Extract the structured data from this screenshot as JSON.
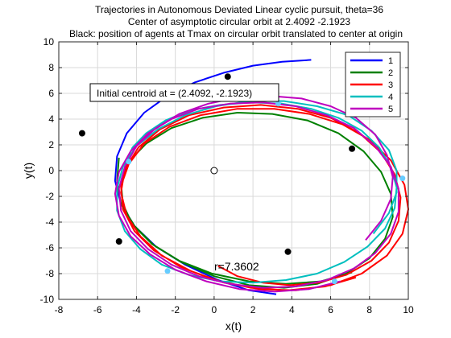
{
  "chart_data": {
    "type": "line",
    "title_lines": [
      "Trajectories in Autonomous Deviated Linear cyclic pursuit, theta=36",
      "Center of asymptotic circular orbit at  2.4092     -2.1923",
      "Black: position of agents at Tmax on circular orbit translated to center at origin"
    ],
    "xlabel": "x(t)",
    "ylabel": "y(t)",
    "xlim": [
      -8,
      10
    ],
    "ylim": [
      -10,
      10
    ],
    "xticks": [
      -8,
      -6,
      -4,
      -2,
      0,
      2,
      4,
      6,
      8,
      10
    ],
    "yticks": [
      -10,
      -8,
      -6,
      -4,
      -2,
      0,
      2,
      4,
      6,
      8,
      10
    ],
    "grid": true,
    "legend_position": "top-right",
    "annotation_box": "Initial centroid at = (2.4092, -2.1923)",
    "radius_label": "r=7.3602",
    "center": [
      2.4092,
      -2.1923
    ],
    "radius": 7.3602,
    "series": [
      {
        "name": "1",
        "color": "#0000ff",
        "points": [
          [
            5.0,
            8.6
          ],
          [
            3.5,
            8.45
          ],
          [
            2.0,
            8.15
          ],
          [
            0.5,
            7.6
          ],
          [
            -1.0,
            6.85
          ],
          [
            -2.4,
            5.8
          ],
          [
            -3.6,
            4.5
          ],
          [
            -4.5,
            2.9
          ],
          [
            -5.0,
            1.1
          ],
          [
            -5.1,
            -0.8
          ],
          [
            -4.8,
            -2.6
          ],
          [
            -4.1,
            -4.3
          ],
          [
            -3.0,
            -5.9
          ],
          [
            -1.5,
            -7.3
          ],
          [
            0.2,
            -8.5
          ],
          [
            1.8,
            -9.3
          ],
          [
            3.2,
            -9.6
          ]
        ]
      },
      {
        "name": "2",
        "color": "#008000",
        "points": [
          [
            -4.9,
            1.0
          ],
          [
            -5.0,
            -0.8
          ],
          [
            -4.8,
            -2.6
          ],
          [
            -4.1,
            -4.3
          ],
          [
            -3.1,
            -5.8
          ],
          [
            -1.7,
            -7.1
          ],
          [
            0.0,
            -8.2
          ],
          [
            1.8,
            -8.9
          ],
          [
            3.6,
            -9.1
          ],
          [
            5.3,
            -8.8
          ],
          [
            6.8,
            -8.0
          ],
          [
            8.0,
            -6.8
          ],
          [
            8.8,
            -5.3
          ],
          [
            9.2,
            -3.6
          ],
          [
            9.1,
            -1.8
          ],
          [
            8.6,
            -0.1
          ],
          [
            7.7,
            1.5
          ],
          [
            6.4,
            2.9
          ],
          [
            4.8,
            3.9
          ],
          [
            3.0,
            4.4
          ],
          [
            1.2,
            4.5
          ],
          [
            -0.6,
            4.1
          ],
          [
            -2.2,
            3.3
          ],
          [
            -3.5,
            2.1
          ],
          [
            -4.4,
            0.7
          ],
          [
            -4.8,
            -0.9
          ],
          [
            -4.7,
            -2.6
          ],
          [
            -4.2,
            -4.2
          ],
          [
            -3.2,
            -5.7
          ],
          [
            -1.8,
            -7.0
          ],
          [
            -0.1,
            -8.0
          ],
          [
            1.8,
            -8.6
          ],
          [
            3.7,
            -8.8
          ],
          [
            5.5,
            -8.6
          ],
          [
            7.1,
            -7.9
          ]
        ]
      },
      {
        "name": "3",
        "color": "#ff0000",
        "points": [
          [
            0.2,
            -7.4
          ],
          [
            1.2,
            -8.2
          ],
          [
            2.5,
            -8.7
          ],
          [
            3.9,
            -8.9
          ],
          [
            5.4,
            -8.7
          ],
          [
            6.8,
            -8.1
          ],
          [
            8.1,
            -7.0
          ],
          [
            9.0,
            -5.6
          ],
          [
            9.5,
            -3.9
          ],
          [
            9.6,
            -2.1
          ],
          [
            9.3,
            -0.3
          ],
          [
            8.6,
            1.4
          ],
          [
            7.5,
            2.9
          ],
          [
            6.0,
            4.1
          ],
          [
            4.3,
            4.8
          ],
          [
            2.4,
            5.1
          ],
          [
            0.5,
            4.9
          ],
          [
            -1.3,
            4.3
          ],
          [
            -2.8,
            3.2
          ],
          [
            -3.9,
            1.8
          ],
          [
            -4.6,
            0.1
          ],
          [
            -4.8,
            -1.7
          ],
          [
            -4.5,
            -3.5
          ],
          [
            -3.8,
            -5.1
          ],
          [
            -2.7,
            -6.6
          ],
          [
            -1.2,
            -7.8
          ],
          [
            0.5,
            -8.7
          ],
          [
            2.3,
            -9.2
          ],
          [
            4.2,
            -9.3
          ],
          [
            6.0,
            -8.9
          ],
          [
            7.6,
            -8.0
          ],
          [
            8.9,
            -6.6
          ],
          [
            9.7,
            -4.9
          ],
          [
            10.0,
            -3.0
          ],
          [
            9.8,
            -1.1
          ],
          [
            9.1,
            0.8
          ],
          [
            8.0,
            2.4
          ],
          [
            6.6,
            3.6
          ],
          [
            4.9,
            4.4
          ],
          [
            3.1,
            4.8
          ],
          [
            1.2,
            4.8
          ],
          [
            -0.7,
            4.3
          ],
          [
            -2.3,
            3.4
          ],
          [
            -3.6,
            2.1
          ],
          [
            -4.4,
            0.5
          ],
          [
            -4.8,
            -1.2
          ],
          [
            -4.7,
            -3.0
          ],
          [
            -4.1,
            -4.7
          ],
          [
            -3.1,
            -6.2
          ],
          [
            -1.7,
            -7.5
          ],
          [
            0.0,
            -8.5
          ],
          [
            1.9,
            -9.1
          ],
          [
            3.8,
            -9.3
          ],
          [
            5.7,
            -9.0
          ],
          [
            7.3,
            -8.3
          ]
        ]
      },
      {
        "name": "4",
        "color": "#00bfbf",
        "points": [
          [
            -4.5,
            0.8
          ],
          [
            -4.2,
            1.8
          ],
          [
            -3.5,
            2.9
          ],
          [
            -2.5,
            3.9
          ],
          [
            -1.2,
            4.7
          ],
          [
            0.3,
            5.1
          ],
          [
            1.9,
            5.3
          ],
          [
            3.5,
            5.2
          ],
          [
            5.0,
            4.8
          ],
          [
            6.4,
            4.1
          ],
          [
            7.6,
            3.1
          ],
          [
            8.5,
            1.8
          ],
          [
            9.1,
            0.3
          ],
          [
            9.4,
            -1.3
          ],
          [
            9.3,
            -2.9
          ],
          [
            8.8,
            -4.5
          ],
          [
            7.9,
            -5.9
          ],
          [
            6.7,
            -7.1
          ],
          [
            5.3,
            -8.0
          ],
          [
            3.7,
            -8.5
          ],
          [
            2.0,
            -8.7
          ],
          [
            0.3,
            -8.6
          ],
          [
            -1.3,
            -8.1
          ],
          [
            -2.7,
            -7.3
          ],
          [
            -3.8,
            -6.1
          ],
          [
            -4.6,
            -4.7
          ],
          [
            -5.0,
            -3.1
          ],
          [
            -5.0,
            -1.4
          ],
          [
            -4.7,
            0.3
          ],
          [
            -4.0,
            1.9
          ],
          [
            -2.9,
            3.2
          ],
          [
            -1.5,
            4.3
          ],
          [
            0.1,
            5.0
          ],
          [
            1.8,
            5.4
          ],
          [
            3.6,
            5.4
          ],
          [
            5.3,
            5.0
          ],
          [
            6.9,
            4.3
          ],
          [
            8.1,
            3.1
          ],
          [
            9.0,
            1.6
          ],
          [
            9.4,
            0.0
          ],
          [
            9.4,
            -1.7
          ],
          [
            9.0,
            -3.3
          ],
          [
            8.2,
            -4.9
          ]
        ]
      },
      {
        "name": "5",
        "color": "#bf00bf",
        "points": [
          [
            7.8,
            -5.4
          ],
          [
            8.6,
            -3.9
          ],
          [
            9.1,
            -2.2
          ],
          [
            9.2,
            -0.5
          ],
          [
            8.9,
            1.2
          ],
          [
            8.3,
            2.8
          ],
          [
            7.3,
            4.1
          ],
          [
            6.0,
            5.0
          ],
          [
            4.5,
            5.6
          ],
          [
            2.9,
            5.8
          ],
          [
            1.3,
            5.7
          ],
          [
            -0.3,
            5.2
          ],
          [
            -1.8,
            4.4
          ],
          [
            -3.0,
            3.3
          ],
          [
            -4.0,
            1.9
          ],
          [
            -4.6,
            0.3
          ],
          [
            -4.9,
            -1.4
          ],
          [
            -4.8,
            -3.1
          ],
          [
            -4.3,
            -4.7
          ],
          [
            -3.4,
            -6.1
          ],
          [
            -2.2,
            -7.3
          ],
          [
            -0.8,
            -8.2
          ],
          [
            0.8,
            -8.8
          ],
          [
            2.5,
            -9.1
          ],
          [
            4.2,
            -9.0
          ],
          [
            5.8,
            -8.5
          ],
          [
            7.2,
            -7.6
          ],
          [
            8.3,
            -6.4
          ],
          [
            9.1,
            -4.9
          ],
          [
            9.5,
            -3.2
          ],
          [
            9.5,
            -1.4
          ],
          [
            9.1,
            0.3
          ],
          [
            8.3,
            1.9
          ],
          [
            7.2,
            3.3
          ],
          [
            5.8,
            4.3
          ],
          [
            4.2,
            5.0
          ],
          [
            2.5,
            5.3
          ],
          [
            0.8,
            5.2
          ],
          [
            -0.8,
            4.8
          ],
          [
            -2.2,
            4.0
          ],
          [
            -3.4,
            2.9
          ],
          [
            -4.3,
            1.5
          ],
          [
            -4.9,
            -0.1
          ],
          [
            -5.1,
            -1.8
          ],
          [
            -4.9,
            -3.5
          ],
          [
            -4.3,
            -5.1
          ],
          [
            -3.3,
            -6.5
          ],
          [
            -2.0,
            -7.7
          ],
          [
            -0.4,
            -8.6
          ],
          [
            1.3,
            -9.2
          ],
          [
            3.1,
            -9.4
          ],
          [
            4.9,
            -9.2
          ],
          [
            6.5,
            -8.6
          ]
        ]
      }
    ],
    "agent_positions_black": [
      [
        0.7,
        7.3
      ],
      [
        -6.8,
        2.9
      ],
      [
        7.1,
        1.7
      ],
      [
        -4.9,
        -5.5
      ],
      [
        3.8,
        -6.3
      ]
    ],
    "origin_marker": [
      0.0,
      0.0
    ],
    "cyan_markers": [
      [
        3.3,
        5.2
      ],
      [
        -4.4,
        0.7
      ],
      [
        -2.4,
        -7.8
      ],
      [
        6.2,
        -8.6
      ],
      [
        9.7,
        -0.6
      ]
    ]
  }
}
